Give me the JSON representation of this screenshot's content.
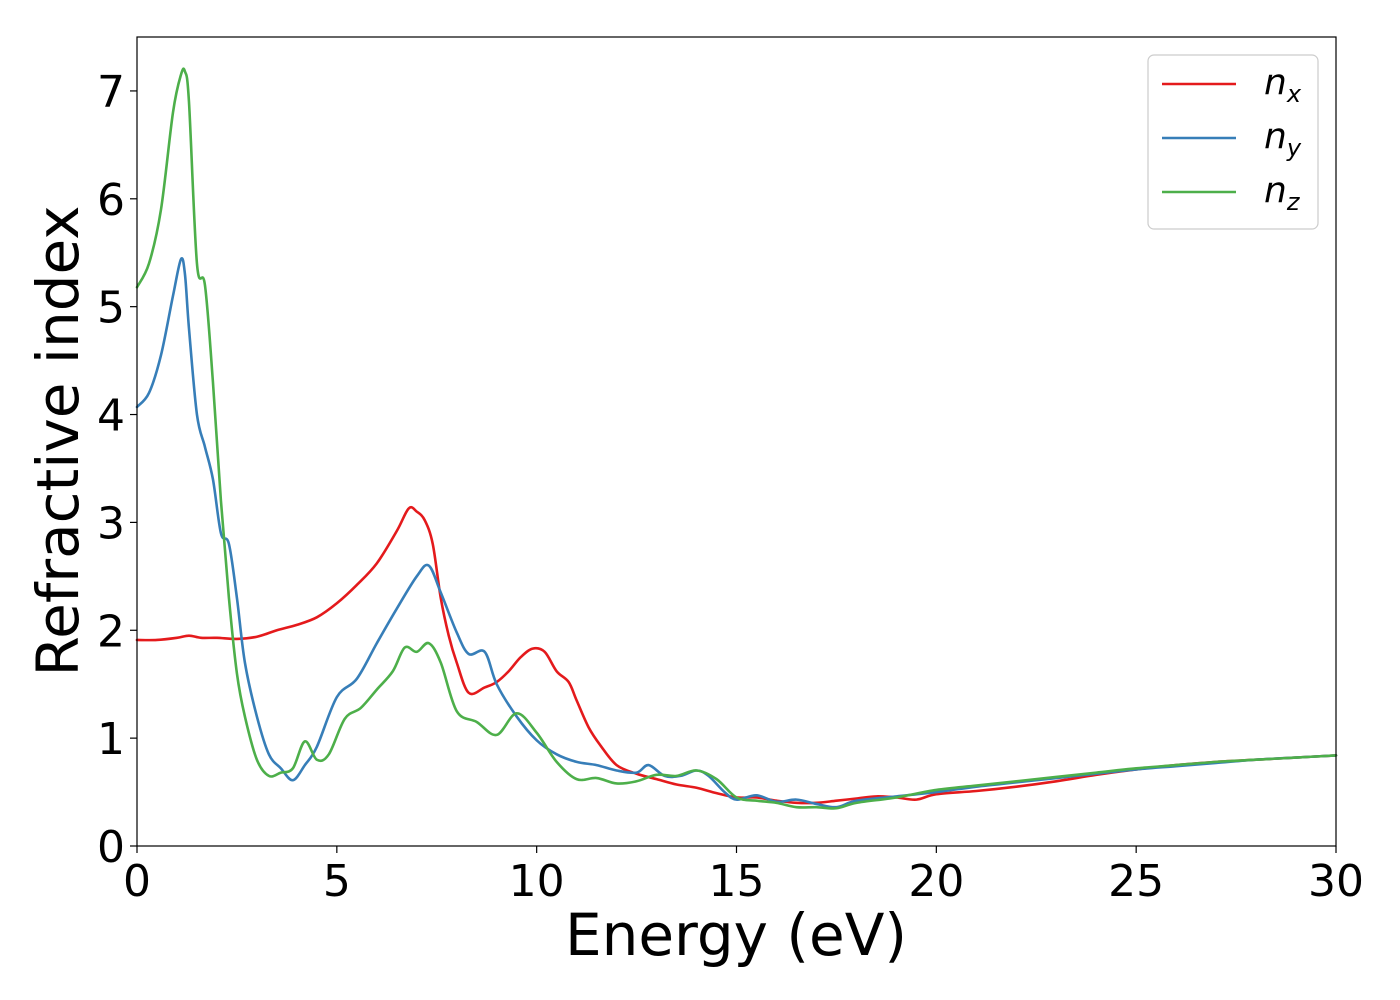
{
  "chart_data": {
    "type": "line",
    "xlabel": "Energy (eV)",
    "ylabel": "Refractive index",
    "xlim": [
      0,
      30
    ],
    "ylim": [
      0,
      7.5
    ],
    "xticks": [
      "0",
      "5",
      "10",
      "15",
      "20",
      "25",
      "30"
    ],
    "yticks": [
      "0",
      "1",
      "2",
      "3",
      "4",
      "5",
      "6",
      "7"
    ],
    "grid": false,
    "legend_position": "top-right",
    "series": [
      {
        "name": "n_x",
        "label_base": "n",
        "label_sub": "x",
        "color": "#e41a1c",
        "x": [
          0,
          0.5,
          1.0,
          1.3,
          1.6,
          2.0,
          2.5,
          3.0,
          3.5,
          4.0,
          4.5,
          5.0,
          5.5,
          6.0,
          6.5,
          6.8,
          7.0,
          7.2,
          7.4,
          7.6,
          7.8,
          8.0,
          8.3,
          8.7,
          9.0,
          9.3,
          9.6,
          9.9,
          10.2,
          10.5,
          10.8,
          11.0,
          11.3,
          11.6,
          12.0,
          12.5,
          13.0,
          13.5,
          14.0,
          14.5,
          15.0,
          15.5,
          16.0,
          16.5,
          17.0,
          17.5,
          18.0,
          18.5,
          19.0,
          19.5,
          20.0,
          21.0,
          22.0,
          23.0,
          24.0,
          25.0,
          26.0,
          27.0,
          28.0,
          29.0,
          30.0
        ],
        "y": [
          1.91,
          1.91,
          1.93,
          1.95,
          1.93,
          1.93,
          1.92,
          1.94,
          2.0,
          2.05,
          2.12,
          2.25,
          2.42,
          2.62,
          2.92,
          3.13,
          3.1,
          3.02,
          2.8,
          2.3,
          1.95,
          1.7,
          1.42,
          1.47,
          1.52,
          1.62,
          1.75,
          1.83,
          1.8,
          1.62,
          1.52,
          1.35,
          1.1,
          0.93,
          0.75,
          0.67,
          0.62,
          0.57,
          0.54,
          0.49,
          0.45,
          0.45,
          0.42,
          0.4,
          0.4,
          0.42,
          0.44,
          0.46,
          0.45,
          0.43,
          0.48,
          0.51,
          0.55,
          0.6,
          0.66,
          0.71,
          0.75,
          0.78,
          0.8,
          0.82,
          0.84
        ]
      },
      {
        "name": "n_y",
        "label_base": "n",
        "label_sub": "y",
        "color": "#377eb8",
        "x": [
          0,
          0.3,
          0.6,
          0.9,
          1.1,
          1.2,
          1.3,
          1.5,
          1.7,
          1.9,
          2.1,
          2.3,
          2.5,
          2.7,
          3.0,
          3.3,
          3.6,
          3.9,
          4.2,
          4.5,
          5.0,
          5.5,
          6.0,
          6.5,
          7.0,
          7.3,
          7.6,
          8.0,
          8.3,
          8.7,
          9.0,
          9.5,
          10.0,
          10.5,
          11.0,
          11.5,
          12.0,
          12.5,
          12.8,
          13.2,
          13.6,
          14.0,
          14.3,
          14.7,
          15.0,
          15.5,
          16.0,
          16.5,
          17.0,
          17.5,
          18.0,
          19.0,
          20.0,
          21.0,
          22.0,
          23.0,
          24.0,
          25.0,
          26.0,
          27.0,
          28.0,
          29.0,
          30.0
        ],
        "y": [
          4.07,
          4.2,
          4.55,
          5.1,
          5.44,
          5.3,
          4.8,
          4.0,
          3.7,
          3.4,
          2.9,
          2.8,
          2.3,
          1.7,
          1.2,
          0.85,
          0.72,
          0.61,
          0.75,
          0.92,
          1.38,
          1.55,
          1.88,
          2.2,
          2.5,
          2.6,
          2.35,
          1.98,
          1.78,
          1.8,
          1.5,
          1.2,
          0.98,
          0.85,
          0.78,
          0.75,
          0.7,
          0.68,
          0.75,
          0.65,
          0.65,
          0.7,
          0.65,
          0.5,
          0.43,
          0.47,
          0.41,
          0.43,
          0.39,
          0.36,
          0.42,
          0.46,
          0.5,
          0.55,
          0.59,
          0.63,
          0.67,
          0.71,
          0.74,
          0.77,
          0.8,
          0.82,
          0.84
        ]
      },
      {
        "name": "n_z",
        "label_base": "n",
        "label_sub": "z",
        "color": "#4daf4a",
        "x": [
          0,
          0.3,
          0.6,
          0.9,
          1.1,
          1.2,
          1.3,
          1.5,
          1.7,
          1.9,
          2.1,
          2.3,
          2.5,
          2.7,
          3.0,
          3.3,
          3.6,
          3.9,
          4.2,
          4.5,
          4.8,
          5.2,
          5.6,
          6.0,
          6.4,
          6.7,
          7.0,
          7.3,
          7.6,
          8.0,
          8.5,
          9.0,
          9.5,
          10.0,
          10.5,
          11.0,
          11.5,
          12.0,
          12.5,
          13.0,
          13.5,
          14.0,
          14.5,
          15.0,
          15.5,
          16.0,
          16.5,
          17.0,
          17.5,
          18.0,
          19.0,
          20.0,
          21.0,
          22.0,
          23.0,
          24.0,
          25.0,
          26.0,
          27.0,
          28.0,
          29.0,
          30.0
        ],
        "y": [
          5.18,
          5.4,
          5.9,
          6.8,
          7.15,
          7.18,
          6.9,
          5.4,
          5.2,
          4.3,
          3.2,
          2.3,
          1.6,
          1.2,
          0.8,
          0.65,
          0.68,
          0.72,
          0.97,
          0.8,
          0.85,
          1.18,
          1.28,
          1.45,
          1.62,
          1.84,
          1.8,
          1.88,
          1.7,
          1.25,
          1.15,
          1.03,
          1.23,
          1.05,
          0.78,
          0.62,
          0.63,
          0.58,
          0.6,
          0.66,
          0.65,
          0.7,
          0.62,
          0.45,
          0.42,
          0.4,
          0.36,
          0.36,
          0.35,
          0.4,
          0.45,
          0.52,
          0.56,
          0.6,
          0.64,
          0.68,
          0.72,
          0.75,
          0.78,
          0.8,
          0.82,
          0.84
        ]
      }
    ]
  }
}
